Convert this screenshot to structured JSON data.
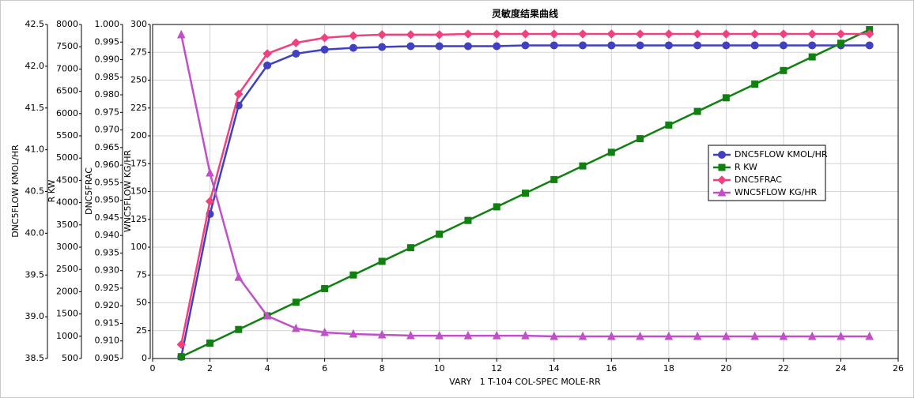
{
  "chart_data": {
    "type": "line",
    "title": "灵敏度结果曲线",
    "xlabel": "VARY   1 T-104 COL-SPEC MOLE-RR",
    "x": [
      1,
      2,
      3,
      4,
      5,
      6,
      7,
      8,
      9,
      10,
      11,
      12,
      13,
      14,
      15,
      16,
      17,
      18,
      19,
      20,
      21,
      22,
      23,
      24,
      25
    ],
    "xlim": [
      0,
      26
    ],
    "xticks": [
      0,
      2,
      4,
      6,
      8,
      10,
      12,
      14,
      16,
      18,
      20,
      22,
      24,
      26
    ],
    "grid": true,
    "series": [
      {
        "name": "DNC5FLOW KMOL/HR",
        "color": "#4040c0",
        "marker": "circle",
        "values": [
          38.52,
          40.23,
          41.53,
          42.01,
          42.15,
          42.2,
          42.22,
          42.23,
          42.24,
          42.24,
          42.24,
          42.24,
          42.25,
          42.25,
          42.25,
          42.25,
          42.25,
          42.25,
          42.25,
          42.25,
          42.25,
          42.25,
          42.25,
          42.25,
          42.25
        ],
        "ylim": [
          38.5,
          42.5
        ],
        "yticks": [
          38.5,
          {
            "value": 39,
            "label": "39.0"
          },
          39.5,
          {
            "value": 40,
            "label": "40.0"
          },
          40.5,
          {
            "value": 41,
            "label": "41.0"
          },
          41.5,
          {
            "value": 42,
            "label": "42.0"
          },
          42.5
        ]
      },
      {
        "name": "R KW",
        "color": "#108010",
        "marker": "square",
        "values": [
          540,
          846,
          1152,
          1458,
          1764,
          2070,
          2376,
          2682,
          2988,
          3294,
          3600,
          3906,
          4212,
          4518,
          4824,
          5130,
          5436,
          5742,
          6048,
          6354,
          6660,
          6966,
          7272,
          7578,
          7884
        ],
        "ylim": [
          500,
          8000
        ],
        "yticks": [
          500,
          1000,
          1500,
          2000,
          2500,
          3000,
          3500,
          4000,
          4500,
          5000,
          5500,
          6000,
          6500,
          7000,
          7500,
          8000
        ]
      },
      {
        "name": "DNC5FRAC",
        "color": "#f0407f",
        "marker": "diamond",
        "values": [
          0.909,
          0.9497,
          0.9802,
          0.9917,
          0.9948,
          0.9962,
          0.9968,
          0.9971,
          0.9971,
          0.9971,
          0.9973,
          0.9973,
          0.9973,
          0.9973,
          0.9973,
          0.9973,
          0.9973,
          0.9973,
          0.9973,
          0.9973,
          0.9973,
          0.9973,
          0.9973,
          0.9973,
          0.9973
        ],
        "ylim": [
          0.905,
          1.0
        ],
        "yticks": [
          0.905,
          {
            "value": 0.91,
            "label": "0.910"
          },
          0.915,
          {
            "value": 0.92,
            "label": "0.920"
          },
          0.925,
          {
            "value": 0.93,
            "label": "0.930"
          },
          0.935,
          {
            "value": 0.94,
            "label": "0.940"
          },
          0.945,
          {
            "value": 0.95,
            "label": "0.950"
          },
          0.955,
          {
            "value": 0.96,
            "label": "0.960"
          },
          0.965,
          {
            "value": 0.97,
            "label": "0.970"
          },
          0.975,
          {
            "value": 0.98,
            "label": "0.980"
          },
          0.985,
          {
            "value": 0.99,
            "label": "0.990"
          },
          0.995,
          {
            "value": 1,
            "label": "1.000"
          }
        ]
      },
      {
        "name": "WNC5FLOW KG/HR",
        "color": "#c050c8",
        "marker": "triangle",
        "values": [
          290.8,
          166.7,
          73.0,
          38.3,
          27.0,
          23.4,
          22.0,
          21.3,
          20.6,
          20.5,
          20.5,
          20.5,
          20.5,
          19.9,
          19.9,
          19.9,
          19.9,
          19.9,
          19.9,
          19.9,
          19.9,
          19.9,
          19.9,
          19.9,
          19.9
        ],
        "ylim": [
          0,
          300
        ],
        "yticks": [
          0,
          25,
          50,
          75,
          100,
          125,
          150,
          175,
          200,
          225,
          250,
          275,
          300
        ]
      }
    ]
  }
}
